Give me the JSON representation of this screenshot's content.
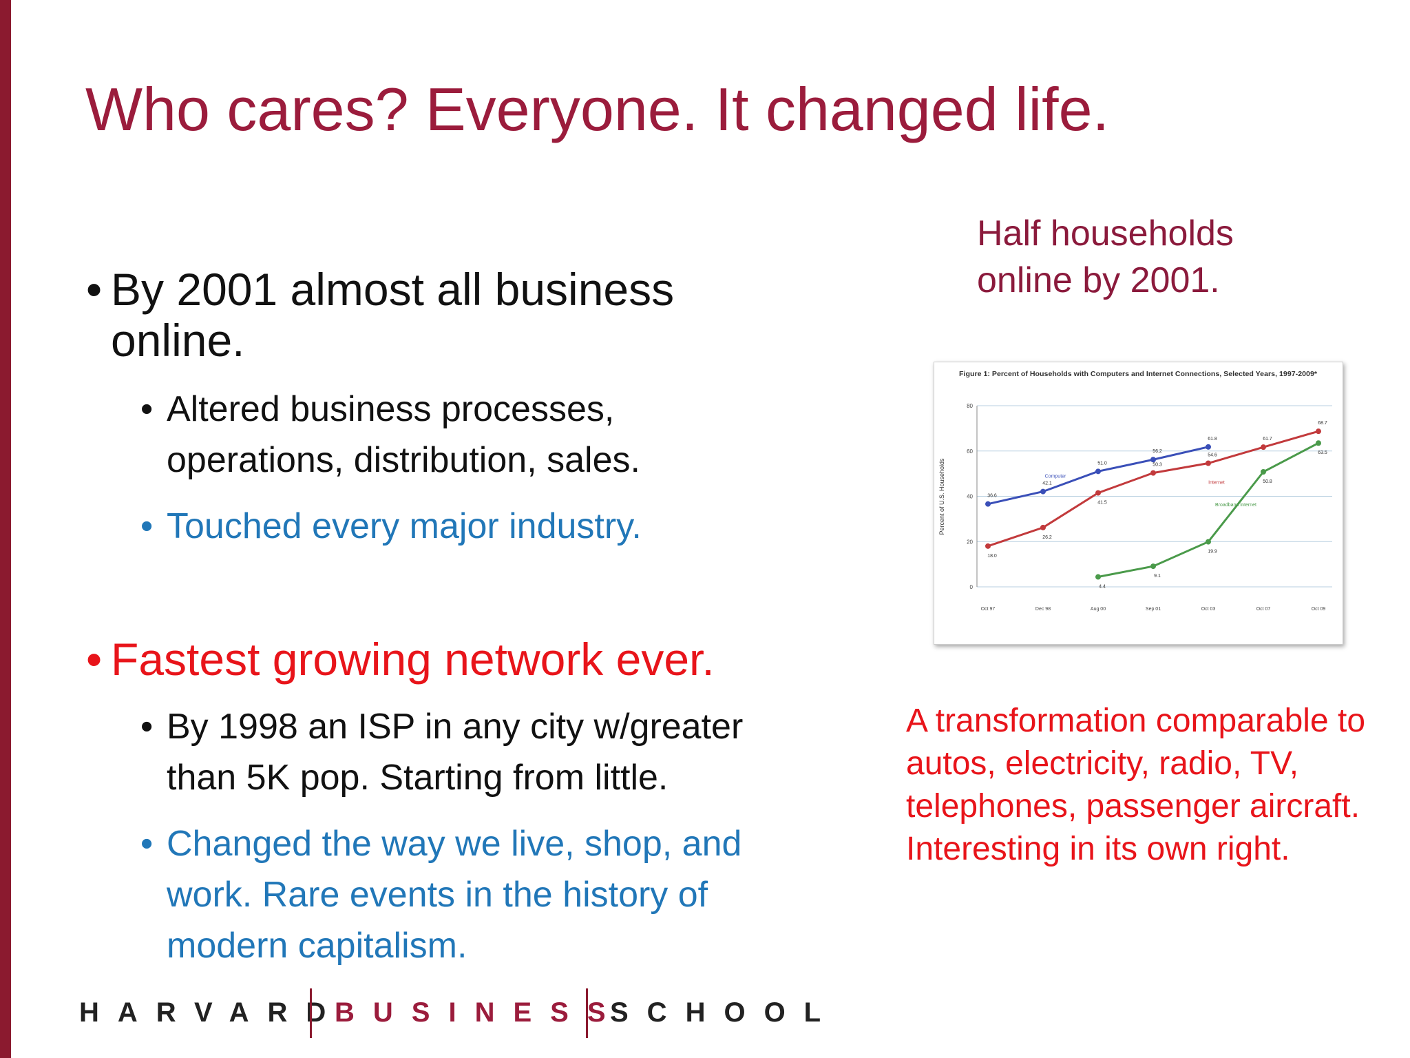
{
  "title": "Who cares? Everyone. It changed life.",
  "bullets": [
    {
      "text": "By 2001 almost all business online.",
      "sub": [
        "Altered business processes, operations, distribution, sales.",
        "Touched every major industry."
      ]
    },
    {
      "text": "Fastest growing network ever.",
      "sub": [
        "By 1998 an ISP in any city w/greater than 5K pop. Starting from little.",
        "Changed the way we live, shop, and work. Rare events in the history of modern capitalism."
      ]
    }
  ],
  "side_note": "Half households online by 2001.",
  "side_text": "A transformation comparable to autos, electricity, radio, TV, telephones, passenger aircraft. Interesting in its own right.",
  "footer": [
    "HARVARD",
    "BUSINESS",
    "SCHOOL"
  ],
  "chart_data": {
    "type": "line",
    "title": "Figure 1: Percent of Households with Computers and Internet Connections, Selected Years, 1997-2009*",
    "y_label": "Percent of U.S. Households",
    "categories": [
      "Oct 97",
      "Dec 98",
      "Aug 00",
      "Sep 01",
      "Oct 03",
      "Oct 07",
      "Oct 09"
    ],
    "ylim": [
      0,
      80
    ],
    "yticks": [
      0,
      20,
      40,
      60,
      80
    ],
    "grid": true,
    "series": [
      {
        "name": "Computer",
        "color": "#3a4fb8",
        "values": [
          36.6,
          42.1,
          51.0,
          56.2,
          61.8,
          null,
          null
        ],
        "value_labels": [
          "36.6",
          "42.1",
          "51.0",
          "56.2",
          "61.8",
          null,
          null
        ]
      },
      {
        "name": "Internet",
        "color": "#c23a3c",
        "values": [
          18.0,
          26.2,
          41.5,
          50.3,
          54.6,
          61.7,
          68.7
        ],
        "value_labels": [
          "18.0",
          "26.2",
          "41.5",
          "50.3",
          "54.6",
          "61.7",
          "68.7"
        ]
      },
      {
        "name": "Broadband Internet",
        "color": "#4a9a4a",
        "values": [
          null,
          null,
          4.4,
          9.1,
          19.9,
          50.8,
          63.5
        ],
        "value_labels": [
          null,
          null,
          "4.4",
          "9.1",
          "19.9",
          "50.8",
          "63.5"
        ]
      }
    ]
  }
}
